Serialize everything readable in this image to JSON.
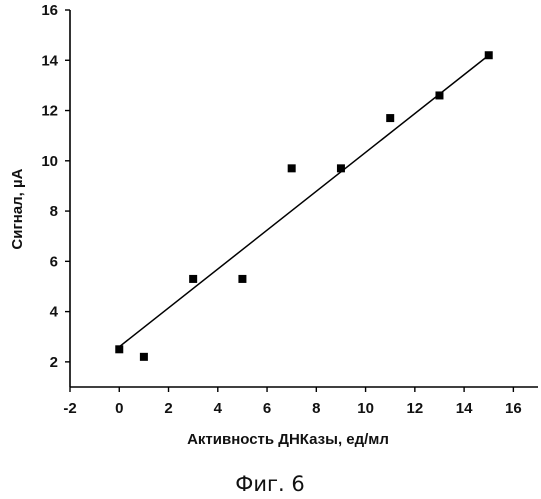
{
  "chart_data": {
    "type": "scatter",
    "xlabel": "Активность ДНКазы, ед/мл",
    "ylabel": "Сигнал, µА",
    "caption": "Фиг. 6",
    "xlim": [
      -2,
      17
    ],
    "ylim": [
      1,
      16
    ],
    "x_ticks": [
      -2,
      0,
      2,
      4,
      6,
      8,
      10,
      12,
      14,
      16
    ],
    "y_ticks": [
      2,
      4,
      6,
      8,
      10,
      12,
      14,
      16
    ],
    "grid": false,
    "series": [
      {
        "points": [
          {
            "x": 0,
            "y": 2.5
          },
          {
            "x": 1,
            "y": 2.2
          },
          {
            "x": 3,
            "y": 5.3
          },
          {
            "x": 5,
            "y": 5.3
          },
          {
            "x": 7,
            "y": 9.7
          },
          {
            "x": 9,
            "y": 9.7
          },
          {
            "x": 11,
            "y": 11.7
          },
          {
            "x": 13,
            "y": 12.6
          },
          {
            "x": 15,
            "y": 14.2
          }
        ],
        "marker": "square",
        "color": "#000000"
      }
    ],
    "trendline": {
      "type": "linear",
      "from": {
        "x": 0,
        "y": 2.6
      },
      "to": {
        "x": 15,
        "y": 14.2
      },
      "color": "#000000"
    }
  }
}
